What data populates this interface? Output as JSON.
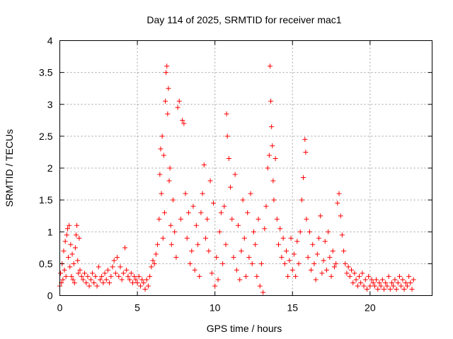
{
  "chart_data": {
    "type": "scatter",
    "title": "Day 114 of 2025, SRMTID for receiver mac1",
    "xlabel": "GPS time / hours",
    "ylabel": "SRMTID / TECUs",
    "xlim": [
      0,
      24
    ],
    "ylim": [
      0,
      4
    ],
    "x_ticks": [
      0,
      5,
      10,
      15,
      20
    ],
    "x_tick_labels": [
      "0",
      "5",
      "10",
      "15",
      "20"
    ],
    "y_ticks": [
      0,
      0.5,
      1,
      1.5,
      2,
      2.5,
      3,
      3.5,
      4
    ],
    "y_tick_labels": [
      "0",
      "0.5",
      "1",
      "1.5",
      "2",
      "2.5",
      "3",
      "3.5",
      "4"
    ],
    "grid": true,
    "marker": "+",
    "series": [
      {
        "name": "SRMTID",
        "color": "#ff0000",
        "points": [
          [
            0.0,
            0.15
          ],
          [
            0.05,
            0.35
          ],
          [
            0.1,
            0.2
          ],
          [
            0.15,
            0.5
          ],
          [
            0.2,
            0.25
          ],
          [
            0.25,
            0.7
          ],
          [
            0.3,
            0.4
          ],
          [
            0.35,
            0.85
          ],
          [
            0.4,
            0.3
          ],
          [
            0.45,
            0.95
          ],
          [
            0.5,
            1.05
          ],
          [
            0.55,
            0.6
          ],
          [
            0.6,
            1.1
          ],
          [
            0.65,
            0.45
          ],
          [
            0.7,
            0.8
          ],
          [
            0.75,
            0.3
          ],
          [
            0.8,
            0.65
          ],
          [
            0.85,
            0.25
          ],
          [
            0.9,
            0.5
          ],
          [
            0.95,
            0.2
          ],
          [
            1.0,
            0.75
          ],
          [
            1.05,
            0.95
          ],
          [
            1.1,
            1.1
          ],
          [
            1.15,
            0.55
          ],
          [
            1.2,
            0.35
          ],
          [
            1.25,
            0.9
          ],
          [
            1.3,
            0.4
          ],
          [
            1.4,
            0.3
          ],
          [
            1.5,
            0.25
          ],
          [
            1.6,
            0.35
          ],
          [
            1.7,
            0.2
          ],
          [
            1.8,
            0.3
          ],
          [
            1.9,
            0.15
          ],
          [
            2.0,
            0.25
          ],
          [
            2.1,
            0.35
          ],
          [
            2.2,
            0.2
          ],
          [
            2.3,
            0.3
          ],
          [
            2.4,
            0.15
          ],
          [
            2.5,
            0.45
          ],
          [
            2.6,
            0.25
          ],
          [
            2.7,
            0.3
          ],
          [
            2.8,
            0.2
          ],
          [
            2.9,
            0.35
          ],
          [
            3.0,
            0.25
          ],
          [
            3.1,
            0.4
          ],
          [
            3.2,
            0.2
          ],
          [
            3.3,
            0.3
          ],
          [
            3.4,
            0.45
          ],
          [
            3.5,
            0.55
          ],
          [
            3.6,
            0.35
          ],
          [
            3.7,
            0.6
          ],
          [
            3.8,
            0.3
          ],
          [
            3.9,
            0.45
          ],
          [
            4.0,
            0.25
          ],
          [
            4.1,
            0.35
          ],
          [
            4.2,
            0.75
          ],
          [
            4.3,
            0.4
          ],
          [
            4.4,
            0.3
          ],
          [
            4.5,
            0.25
          ],
          [
            4.6,
            0.35
          ],
          [
            4.7,
            0.2
          ],
          [
            4.8,
            0.3
          ],
          [
            4.9,
            0.25
          ],
          [
            5.0,
            0.2
          ],
          [
            5.1,
            0.3
          ],
          [
            5.2,
            0.15
          ],
          [
            5.3,
            0.25
          ],
          [
            5.4,
            0.2
          ],
          [
            5.5,
            0.1
          ],
          [
            5.6,
            0.25
          ],
          [
            5.7,
            0.15
          ],
          [
            5.8,
            0.3
          ],
          [
            5.9,
            0.45
          ],
          [
            6.0,
            0.55
          ],
          [
            6.1,
            0.5
          ],
          [
            6.2,
            0.65
          ],
          [
            6.3,
            0.8
          ],
          [
            6.4,
            1.2
          ],
          [
            6.45,
            1.9
          ],
          [
            6.5,
            2.3
          ],
          [
            6.55,
            1.6
          ],
          [
            6.6,
            2.5
          ],
          [
            6.65,
            0.9
          ],
          [
            6.7,
            2.2
          ],
          [
            6.75,
            1.3
          ],
          [
            6.8,
            3.05
          ],
          [
            6.85,
            3.5
          ],
          [
            6.9,
            3.6
          ],
          [
            6.95,
            2.85
          ],
          [
            7.0,
            3.25
          ],
          [
            7.05,
            1.8
          ],
          [
            7.1,
            2.0
          ],
          [
            7.15,
            1.1
          ],
          [
            7.2,
            0.8
          ],
          [
            7.3,
            1.5
          ],
          [
            7.4,
            1.0
          ],
          [
            7.5,
            0.6
          ],
          [
            7.6,
            2.95
          ],
          [
            7.7,
            3.05
          ],
          [
            7.8,
            1.2
          ],
          [
            7.9,
            2.75
          ],
          [
            8.0,
            2.7
          ],
          [
            8.1,
            1.6
          ],
          [
            8.2,
            0.9
          ],
          [
            8.3,
            1.3
          ],
          [
            8.4,
            0.5
          ],
          [
            8.5,
            0.7
          ],
          [
            8.6,
            1.4
          ],
          [
            8.7,
            0.4
          ],
          [
            8.8,
            1.1
          ],
          [
            8.9,
            0.8
          ],
          [
            9.0,
            0.3
          ],
          [
            9.1,
            1.3
          ],
          [
            9.2,
            1.6
          ],
          [
            9.3,
            2.05
          ],
          [
            9.4,
            0.9
          ],
          [
            9.5,
            1.2
          ],
          [
            9.6,
            0.7
          ],
          [
            9.7,
            1.8
          ],
          [
            9.8,
            0.35
          ],
          [
            9.9,
            1.45
          ],
          [
            10.0,
            0.15
          ],
          [
            10.1,
            0.6
          ],
          [
            10.2,
            0.25
          ],
          [
            10.3,
            1.0
          ],
          [
            10.4,
            1.3
          ],
          [
            10.5,
            0.5
          ],
          [
            10.6,
            1.4
          ],
          [
            10.7,
            0.8
          ],
          [
            10.75,
            2.85
          ],
          [
            10.8,
            2.5
          ],
          [
            10.9,
            2.15
          ],
          [
            11.0,
            1.7
          ],
          [
            11.1,
            1.2
          ],
          [
            11.2,
            0.6
          ],
          [
            11.3,
            1.9
          ],
          [
            11.4,
            0.4
          ],
          [
            11.5,
            1.1
          ],
          [
            11.6,
            0.25
          ],
          [
            11.7,
            0.7
          ],
          [
            11.8,
            1.5
          ],
          [
            11.9,
            0.9
          ],
          [
            12.0,
            0.3
          ],
          [
            12.1,
            1.3
          ],
          [
            12.2,
            0.6
          ],
          [
            12.3,
            1.6
          ],
          [
            12.4,
            0.5
          ],
          [
            12.5,
            1.0
          ],
          [
            12.6,
            0.8
          ],
          [
            12.7,
            0.3
          ],
          [
            12.8,
            1.2
          ],
          [
            12.9,
            0.15
          ],
          [
            13.0,
            0.5
          ],
          [
            13.1,
            0.05
          ],
          [
            13.2,
            1.05
          ],
          [
            13.3,
            1.4
          ],
          [
            13.4,
            2.0
          ],
          [
            13.5,
            2.2
          ],
          [
            13.55,
            3.6
          ],
          [
            13.6,
            3.05
          ],
          [
            13.65,
            2.65
          ],
          [
            13.7,
            2.35
          ],
          [
            13.75,
            1.8
          ],
          [
            13.8,
            1.5
          ],
          [
            13.9,
            2.15
          ],
          [
            14.0,
            1.2
          ],
          [
            14.1,
            0.8
          ],
          [
            14.2,
            1.05
          ],
          [
            14.3,
            0.6
          ],
          [
            14.4,
            0.9
          ],
          [
            14.5,
            0.5
          ],
          [
            14.6,
            0.7
          ],
          [
            14.7,
            0.3
          ],
          [
            14.8,
            0.55
          ],
          [
            14.9,
            0.9
          ],
          [
            15.0,
            0.4
          ],
          [
            15.1,
            0.65
          ],
          [
            15.2,
            0.3
          ],
          [
            15.3,
            0.85
          ],
          [
            15.4,
            0.5
          ],
          [
            15.5,
            1.0
          ],
          [
            15.6,
            1.5
          ],
          [
            15.7,
            1.85
          ],
          [
            15.8,
            2.45
          ],
          [
            15.85,
            2.25
          ],
          [
            15.9,
            1.2
          ],
          [
            16.0,
            0.6
          ],
          [
            16.1,
            1.0
          ],
          [
            16.2,
            0.4
          ],
          [
            16.3,
            0.8
          ],
          [
            16.4,
            0.5
          ],
          [
            16.5,
            0.25
          ],
          [
            16.6,
            0.65
          ],
          [
            16.7,
            0.9
          ],
          [
            16.8,
            1.25
          ],
          [
            16.9,
            0.35
          ],
          [
            17.0,
            0.55
          ],
          [
            17.1,
            0.85
          ],
          [
            17.2,
            0.4
          ],
          [
            17.3,
            1.0
          ],
          [
            17.4,
            0.6
          ],
          [
            17.5,
            0.3
          ],
          [
            17.6,
            0.7
          ],
          [
            17.7,
            0.45
          ],
          [
            17.8,
            0.5
          ],
          [
            17.9,
            1.45
          ],
          [
            18.0,
            1.6
          ],
          [
            18.1,
            1.25
          ],
          [
            18.2,
            0.95
          ],
          [
            18.3,
            0.7
          ],
          [
            18.4,
            0.5
          ],
          [
            18.5,
            0.35
          ],
          [
            18.6,
            0.45
          ],
          [
            18.7,
            0.3
          ],
          [
            18.8,
            0.4
          ],
          [
            18.9,
            0.2
          ],
          [
            19.0,
            0.35
          ],
          [
            19.1,
            0.25
          ],
          [
            19.2,
            0.15
          ],
          [
            19.3,
            0.3
          ],
          [
            19.4,
            0.2
          ],
          [
            19.5,
            0.35
          ],
          [
            19.6,
            0.15
          ],
          [
            19.7,
            0.25
          ],
          [
            19.8,
            0.1
          ],
          [
            19.9,
            0.3
          ],
          [
            20.0,
            0.15
          ],
          [
            20.1,
            0.25
          ],
          [
            20.2,
            0.2
          ],
          [
            20.3,
            0.15
          ],
          [
            20.4,
            0.25
          ],
          [
            20.5,
            0.1
          ],
          [
            20.6,
            0.2
          ],
          [
            20.7,
            0.15
          ],
          [
            20.8,
            0.25
          ],
          [
            20.9,
            0.1
          ],
          [
            21.0,
            0.2
          ],
          [
            21.1,
            0.15
          ],
          [
            21.2,
            0.3
          ],
          [
            21.3,
            0.1
          ],
          [
            21.4,
            0.2
          ],
          [
            21.5,
            0.15
          ],
          [
            21.6,
            0.25
          ],
          [
            21.7,
            0.1
          ],
          [
            21.8,
            0.2
          ],
          [
            21.9,
            0.3
          ],
          [
            22.0,
            0.15
          ],
          [
            22.1,
            0.25
          ],
          [
            22.2,
            0.1
          ],
          [
            22.3,
            0.2
          ],
          [
            22.4,
            0.15
          ],
          [
            22.5,
            0.3
          ],
          [
            22.6,
            0.2
          ],
          [
            22.7,
            0.1
          ],
          [
            22.8,
            0.25
          ]
        ]
      }
    ]
  }
}
